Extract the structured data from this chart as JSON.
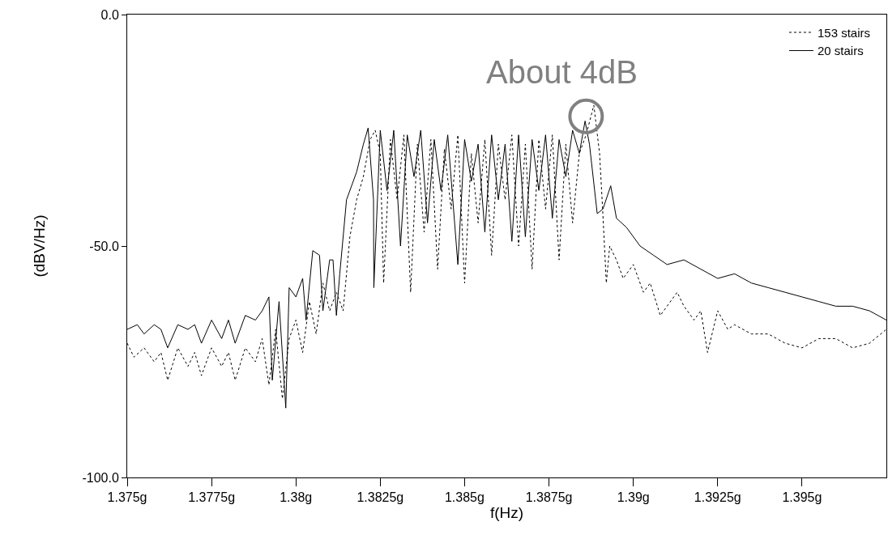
{
  "chart_data": {
    "type": "line",
    "xlabel": "f(Hz)",
    "ylabel": "(dBV/Hz)",
    "xlim": [
      1.375,
      1.3975
    ],
    "ylim": [
      -100,
      0
    ],
    "xticks": [
      {
        "value": 1.375,
        "label": "1.375g"
      },
      {
        "value": 1.3775,
        "label": "1.3775g"
      },
      {
        "value": 1.38,
        "label": "1.38g"
      },
      {
        "value": 1.3825,
        "label": "1.3825g"
      },
      {
        "value": 1.385,
        "label": "1.385g"
      },
      {
        "value": 1.3875,
        "label": "1.3875g"
      },
      {
        "value": 1.39,
        "label": "1.39g"
      },
      {
        "value": 1.3925,
        "label": "1.3925g"
      },
      {
        "value": 1.395,
        "label": "1.395g"
      }
    ],
    "yticks": [
      {
        "value": -100,
        "label": "-100.0"
      },
      {
        "value": -50,
        "label": "-50.0"
      },
      {
        "value": 0,
        "label": "0.0"
      }
    ],
    "legend": "top right",
    "marker": "none",
    "annotations": [
      {
        "text": "About 4dB",
        "x": 1.3886,
        "y": -22
      }
    ],
    "series": [
      {
        "name": "153 stairs",
        "color": "#000000",
        "line_style": "dotted",
        "x": [
          1.375,
          1.3752,
          1.3755,
          1.3758,
          1.376,
          1.3762,
          1.3765,
          1.3768,
          1.377,
          1.3772,
          1.3775,
          1.3778,
          1.378,
          1.3782,
          1.3785,
          1.3788,
          1.379,
          1.3792,
          1.3794,
          1.3796,
          1.3798,
          1.38,
          1.3802,
          1.3804,
          1.3806,
          1.3808,
          1.381,
          1.3812,
          1.3814,
          1.3816,
          1.3818,
          1.382,
          1.3822,
          1.38235,
          1.3825,
          1.3826,
          1.3828,
          1.383,
          1.3832,
          1.3834,
          1.3836,
          1.3838,
          1.384,
          1.3842,
          1.3844,
          1.3846,
          1.3848,
          1.385,
          1.3852,
          1.3854,
          1.3856,
          1.3858,
          1.386,
          1.3862,
          1.3864,
          1.3866,
          1.3868,
          1.387,
          1.3872,
          1.3874,
          1.3876,
          1.3878,
          1.388,
          1.3882,
          1.3884,
          1.3886,
          1.38883,
          1.389,
          1.38909,
          1.3892,
          1.3893,
          1.3895,
          1.3897,
          1.39,
          1.3903,
          1.3905,
          1.3908,
          1.391,
          1.3913,
          1.3915,
          1.3918,
          1.392,
          1.3922,
          1.3925,
          1.3928,
          1.393,
          1.3935,
          1.394,
          1.3945,
          1.395,
          1.3955,
          1.396,
          1.3965,
          1.397,
          1.3975
        ],
        "values": [
          -71,
          -74,
          -72,
          -75,
          -73,
          -79,
          -72,
          -76,
          -73,
          -78,
          -72,
          -76,
          -73,
          -79,
          -72,
          -75,
          -70,
          -80,
          -68,
          -83,
          -70,
          -66,
          -73,
          -62,
          -69,
          -58,
          -64,
          -60,
          -64,
          -48,
          -40,
          -35,
          -27,
          -25,
          -30,
          -58,
          -27,
          -40,
          -26,
          -60,
          -28,
          -47,
          -27,
          -55,
          -29,
          -42,
          -26,
          -58,
          -30,
          -45,
          -27,
          -52,
          -28,
          -40,
          -26,
          -50,
          -28,
          -55,
          -27,
          -42,
          -26,
          -53,
          -28,
          -45,
          -30,
          -26,
          -19.6,
          -30,
          -42,
          -58,
          -50,
          -53,
          -57,
          -54,
          -60,
          -58,
          -65,
          -63,
          -60,
          -63,
          -66,
          -64,
          -73,
          -64,
          -68,
          -67,
          -69,
          -69,
          -71,
          -72,
          -70,
          -70,
          -72,
          -71,
          -68
        ]
      },
      {
        "name": "20 stairs",
        "color": "#000000",
        "line_style": "solid",
        "x": [
          1.375,
          1.3753,
          1.3755,
          1.3758,
          1.376,
          1.3762,
          1.3765,
          1.3768,
          1.377,
          1.3772,
          1.3775,
          1.3778,
          1.378,
          1.3782,
          1.3785,
          1.3788,
          1.379,
          1.3792,
          1.3793,
          1.3795,
          1.3797,
          1.3798,
          1.38,
          1.3802,
          1.3803,
          1.3805,
          1.3807,
          1.3808,
          1.381,
          1.3811,
          1.3812,
          1.3813,
          1.3815,
          1.3818,
          1.382,
          1.38214,
          1.3823,
          1.38231,
          1.3825,
          1.3827,
          1.3829,
          1.3831,
          1.3833,
          1.3835,
          1.3837,
          1.3839,
          1.3841,
          1.3843,
          1.3845,
          1.3848,
          1.385,
          1.3852,
          1.3854,
          1.3856,
          1.3858,
          1.386,
          1.3862,
          1.3864,
          1.3866,
          1.3868,
          1.387,
          1.3872,
          1.3874,
          1.3876,
          1.3878,
          1.388,
          1.3882,
          1.3884,
          1.38857,
          1.3887,
          1.38893,
          1.3891,
          1.38933,
          1.3895,
          1.3898,
          1.3902,
          1.3906,
          1.391,
          1.3915,
          1.392,
          1.3925,
          1.393,
          1.3935,
          1.394,
          1.3945,
          1.395,
          1.3955,
          1.396,
          1.3965,
          1.397,
          1.3975
        ],
        "values": [
          -68,
          -67,
          -69,
          -67,
          -68,
          -72,
          -67,
          -68,
          -67,
          -71,
          -66,
          -70,
          -66,
          -71,
          -65,
          -66,
          -64,
          -61,
          -79,
          -62,
          -85,
          -59,
          -61,
          -57,
          -66,
          -51,
          -52,
          -64,
          -53,
          -53,
          -65,
          -56,
          -40,
          -34,
          -28,
          -24.5,
          -40,
          -59,
          -25,
          -38,
          -25,
          -50,
          -26,
          -35,
          -25,
          -45,
          -27,
          -38,
          -26,
          -54,
          -27,
          -36,
          -28,
          -47,
          -26,
          -40,
          -28,
          -49,
          -26,
          -48,
          -27,
          -38,
          -26,
          -44,
          -27,
          -35,
          -25,
          -30,
          -23,
          -28,
          -43,
          -42,
          -37,
          -44,
          -46,
          -50,
          -52,
          -54,
          -53,
          -55,
          -57,
          -56,
          -58,
          -59,
          -60,
          -61,
          -62,
          -63,
          -63,
          -64,
          -66
        ]
      }
    ]
  }
}
